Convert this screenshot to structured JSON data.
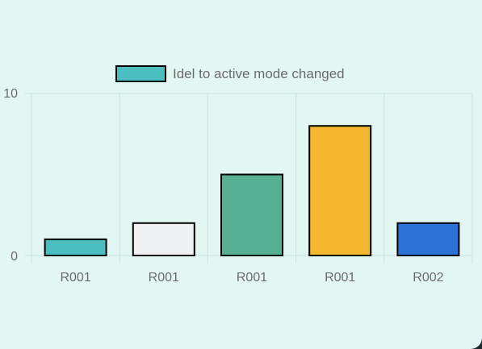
{
  "chart_data": {
    "type": "bar",
    "categories": [
      "R001",
      "R001",
      "R001",
      "R001",
      "R002"
    ],
    "series": [
      {
        "name": "Idel to active mode changed",
        "values": [
          1,
          2,
          5,
          8,
          2
        ],
        "colors": [
          "#4bbfbf",
          "#eef0f1",
          "#55b095",
          "#f4b72e",
          "#2a72d6"
        ],
        "legend_color": "#4bbfbf",
        "border_color": "#000000"
      }
    ],
    "y_ticks": [
      "0",
      "10"
    ],
    "ylim": [
      0,
      10
    ],
    "grid": true,
    "legend_position": "top"
  }
}
